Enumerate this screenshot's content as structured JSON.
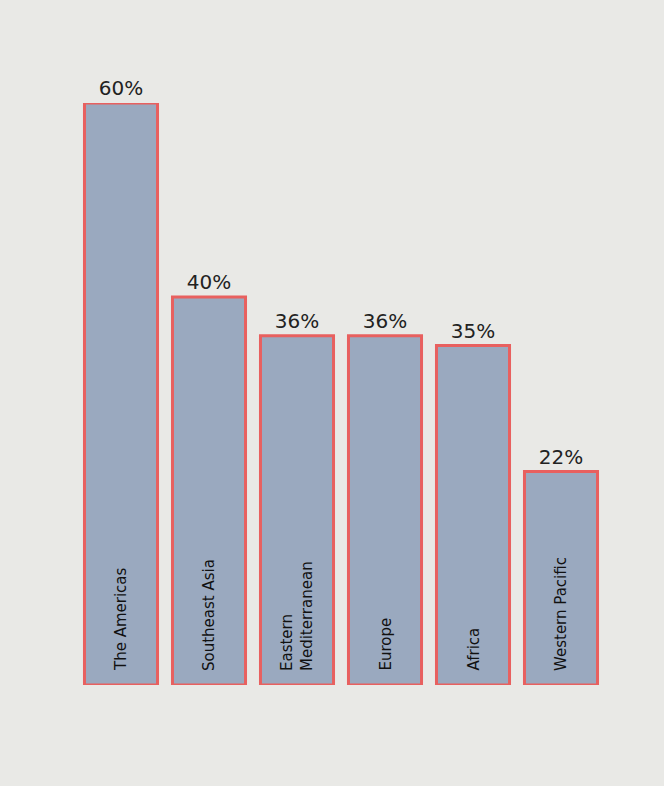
{
  "chart_data": {
    "type": "bar",
    "categories": [
      "The Americas",
      "Southeast Asia",
      "Eastern Mediterranean",
      "Europe",
      "Africa",
      "Western Pacific"
    ],
    "values": [
      60,
      40,
      36,
      36,
      35,
      22
    ],
    "value_labels": [
      "60%",
      "40%",
      "36%",
      "36%",
      "35%",
      "22%"
    ],
    "color": "#9aa9bf",
    "ylim": [
      0,
      60
    ],
    "grid": false,
    "data_labels": true,
    "tick_labels": false
  }
}
